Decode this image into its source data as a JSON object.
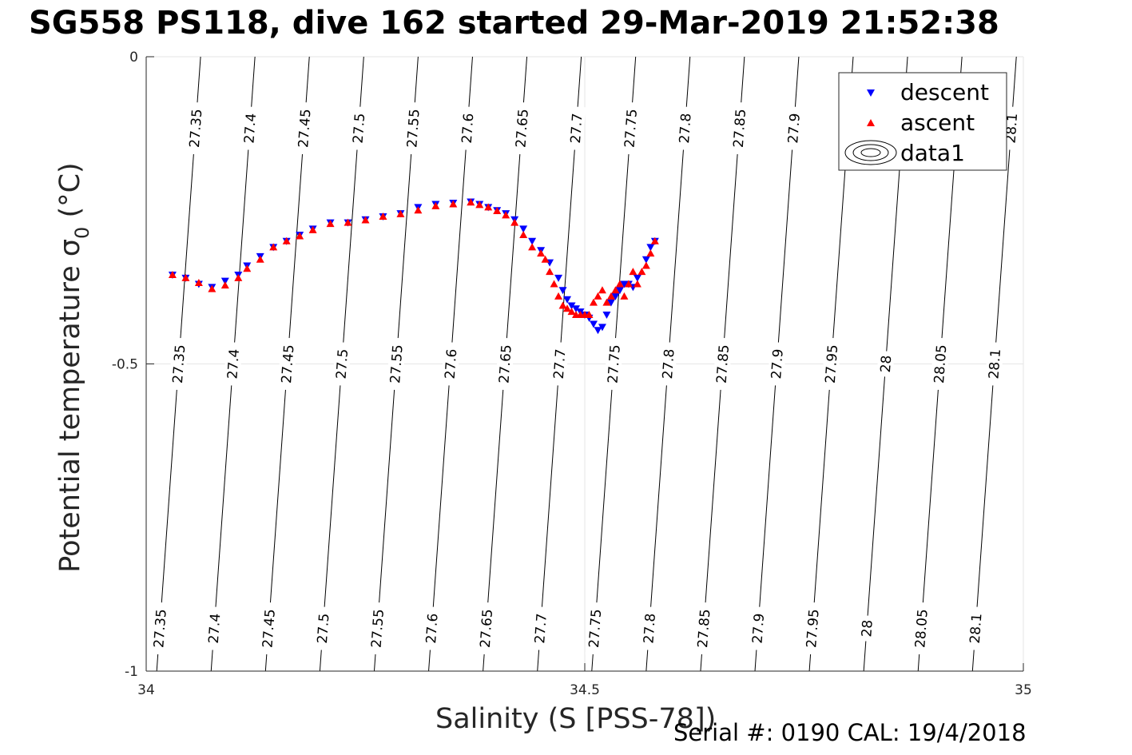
{
  "title": "SG558 PS118, dive 162 started 29-Mar-2019 21:52:38",
  "footer": "Serial #: 0190  CAL: 19/4/2018",
  "colors": {
    "descent": "#0000ff",
    "ascent": "#ff0000",
    "contour": "#000000",
    "grid": "#e6e6e6"
  },
  "chart_data": {
    "type": "scatter",
    "title": "SG558 PS118, dive 162 started 29-Mar-2019 21:52:38",
    "xlabel": "Salinity (S [PSS-78])",
    "ylabel_main": "Potential temperature ",
    "ylabel_sigma": "σ",
    "ylabel_sub": "0",
    "ylabel_unit": " (°C)",
    "xlim": [
      34,
      35
    ],
    "ylim": [
      -1,
      0
    ],
    "x_ticks": [
      34,
      34.5,
      35
    ],
    "x_tick_labels": [
      "34",
      "34.5",
      "35"
    ],
    "y_ticks": [
      -1,
      -0.5,
      0
    ],
    "y_tick_labels": [
      "-1",
      "-0.5",
      "0"
    ],
    "grid": true,
    "legend_position": "top-right",
    "legend": [
      "descent",
      "ascent",
      "data1"
    ],
    "isopycnals": {
      "levels": [
        27.35,
        27.4,
        27.45,
        27.5,
        27.55,
        27.6,
        27.65,
        27.7,
        27.75,
        27.8,
        27.85,
        27.9,
        27.95,
        28,
        28.05,
        28.1
      ],
      "labels": [
        "27.35",
        "27.4",
        "27.45",
        "27.5",
        "27.55",
        "27.6",
        "27.65",
        "27.7",
        "27.75",
        "27.8",
        "27.85",
        "27.9",
        "27.95",
        "28",
        "28.05",
        "28.1"
      ],
      "x_at_bottom": [
        34.012,
        34.074,
        34.136,
        34.198,
        34.26,
        34.322,
        34.384,
        34.446,
        34.508,
        34.57,
        34.632,
        34.694,
        34.756,
        34.818,
        34.88,
        34.942
      ],
      "x_at_top": [
        34.062,
        34.124,
        34.186,
        34.248,
        34.31,
        34.372,
        34.434,
        34.496,
        34.558,
        34.62,
        34.682,
        34.744,
        34.806,
        34.868,
        34.93,
        34.992
      ],
      "top_labels_hidden_by_legend": [
        "27.95",
        "28",
        "28.05"
      ],
      "top_label_clipped": "28.1"
    },
    "series": [
      {
        "name": "descent",
        "marker": "triangle-down",
        "x": [
          34.03,
          34.045,
          34.06,
          34.075,
          34.09,
          34.105,
          34.115,
          34.13,
          34.145,
          34.16,
          34.175,
          34.19,
          34.21,
          34.23,
          34.25,
          34.27,
          34.29,
          34.31,
          34.33,
          34.35,
          34.37,
          34.38,
          34.39,
          34.4,
          34.41,
          34.42,
          34.43,
          34.44,
          34.45,
          34.46,
          34.47,
          34.475,
          34.48,
          34.485,
          34.49,
          34.495,
          34.5,
          34.505,
          34.51,
          34.515,
          34.52,
          34.525,
          34.53,
          34.535,
          34.54,
          34.545,
          34.55,
          34.555,
          34.56,
          34.57,
          34.575,
          34.58
        ],
        "y": [
          -0.355,
          -0.36,
          -0.37,
          -0.375,
          -0.365,
          -0.355,
          -0.34,
          -0.325,
          -0.31,
          -0.3,
          -0.29,
          -0.28,
          -0.27,
          -0.27,
          -0.265,
          -0.26,
          -0.255,
          -0.245,
          -0.24,
          -0.238,
          -0.236,
          -0.24,
          -0.245,
          -0.25,
          -0.255,
          -0.265,
          -0.28,
          -0.3,
          -0.315,
          -0.335,
          -0.36,
          -0.38,
          -0.395,
          -0.405,
          -0.41,
          -0.415,
          -0.42,
          -0.425,
          -0.435,
          -0.445,
          -0.44,
          -0.42,
          -0.4,
          -0.39,
          -0.38,
          -0.37,
          -0.37,
          -0.375,
          -0.36,
          -0.33,
          -0.31,
          -0.3
        ]
      },
      {
        "name": "ascent",
        "marker": "triangle-up",
        "x": [
          34.03,
          34.045,
          34.06,
          34.075,
          34.09,
          34.105,
          34.115,
          34.13,
          34.145,
          34.16,
          34.175,
          34.19,
          34.21,
          34.23,
          34.25,
          34.27,
          34.29,
          34.31,
          34.33,
          34.35,
          34.37,
          34.38,
          34.39,
          34.4,
          34.41,
          34.42,
          34.43,
          34.44,
          34.45,
          34.455,
          34.46,
          34.465,
          34.47,
          34.475,
          34.48,
          34.485,
          34.49,
          34.495,
          34.5,
          34.505,
          34.51,
          34.515,
          34.52,
          34.525,
          34.53,
          34.535,
          34.54,
          34.545,
          34.55,
          34.555,
          34.56,
          34.565,
          34.57,
          34.575,
          34.58
        ],
        "y": [
          -0.355,
          -0.36,
          -0.368,
          -0.378,
          -0.372,
          -0.36,
          -0.345,
          -0.33,
          -0.31,
          -0.3,
          -0.292,
          -0.282,
          -0.272,
          -0.27,
          -0.266,
          -0.26,
          -0.256,
          -0.25,
          -0.243,
          -0.24,
          -0.237,
          -0.241,
          -0.245,
          -0.251,
          -0.258,
          -0.27,
          -0.29,
          -0.31,
          -0.32,
          -0.33,
          -0.35,
          -0.37,
          -0.39,
          -0.405,
          -0.41,
          -0.415,
          -0.42,
          -0.42,
          -0.42,
          -0.42,
          -0.4,
          -0.39,
          -0.38,
          -0.4,
          -0.39,
          -0.38,
          -0.37,
          -0.39,
          -0.37,
          -0.35,
          -0.37,
          -0.35,
          -0.34,
          -0.32,
          -0.3
        ]
      }
    ]
  }
}
